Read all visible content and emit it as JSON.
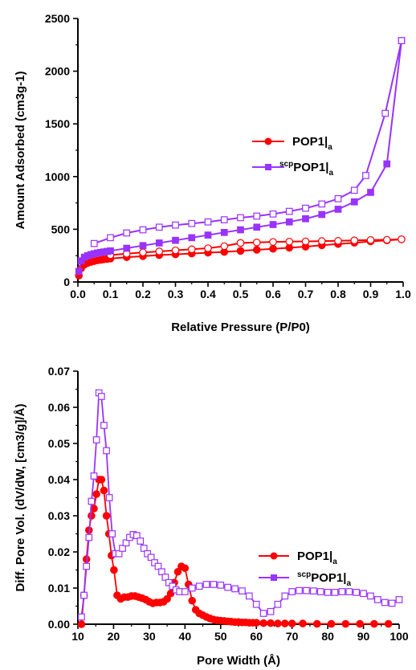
{
  "chart_data": [
    {
      "type": "line",
      "xlabel": "Relative Pressure (P/P0)",
      "ylabel": "Amount Adsorbed (cm3g-1)",
      "xlim": [
        0.0,
        1.0
      ],
      "ylim": [
        0,
        2500
      ],
      "xticks": [
        "0.0",
        "0.1",
        "0.2",
        "0.3",
        "0.4",
        "0.5",
        "0.6",
        "0.7",
        "0.8",
        "0.9",
        "1.0"
      ],
      "yticks": [
        "0",
        "500",
        "1000",
        "1500",
        "2000",
        "2500"
      ],
      "legend_position": "center-right",
      "legend": [
        {
          "sup": "",
          "main": "POP1",
          "sub": "a",
          "color": "#ff0000",
          "marker": "circle"
        },
        {
          "sup": "scp",
          "main": "POP1",
          "sub": "a",
          "color": "#9933ff",
          "marker": "square"
        }
      ],
      "series": [
        {
          "name": "POP1|a",
          "branch": "adsorption",
          "color": "#ff0000",
          "marker": "circle",
          "filled": true,
          "x": [
            0.003,
            0.01,
            0.02,
            0.03,
            0.04,
            0.05,
            0.06,
            0.07,
            0.08,
            0.09,
            0.1,
            0.15,
            0.2,
            0.25,
            0.3,
            0.35,
            0.4,
            0.45,
            0.5,
            0.55,
            0.6,
            0.65,
            0.7,
            0.75,
            0.8,
            0.85,
            0.9,
            0.95,
            0.995
          ],
          "y": [
            60,
            130,
            165,
            180,
            190,
            198,
            205,
            210,
            215,
            218,
            222,
            235,
            245,
            255,
            262,
            270,
            278,
            285,
            295,
            305,
            315,
            325,
            335,
            348,
            360,
            372,
            385,
            395,
            405
          ]
        },
        {
          "name": "POP1|a",
          "branch": "desorption",
          "color": "#ff0000",
          "marker": "circle",
          "filled": false,
          "x": [
            0.995,
            0.95,
            0.9,
            0.85,
            0.8,
            0.75,
            0.7,
            0.65,
            0.6,
            0.55,
            0.5,
            0.45,
            0.4,
            0.35,
            0.3,
            0.25,
            0.2,
            0.15,
            0.1
          ],
          "y": [
            405,
            400,
            398,
            395,
            390,
            388,
            385,
            383,
            380,
            375,
            370,
            340,
            320,
            310,
            300,
            290,
            280,
            268,
            255
          ]
        },
        {
          "name": "scpPOP1|a",
          "branch": "adsorption",
          "color": "#9933ff",
          "marker": "square",
          "filled": true,
          "x": [
            0.003,
            0.01,
            0.02,
            0.03,
            0.04,
            0.05,
            0.06,
            0.07,
            0.08,
            0.09,
            0.1,
            0.15,
            0.2,
            0.25,
            0.3,
            0.35,
            0.4,
            0.45,
            0.5,
            0.55,
            0.6,
            0.65,
            0.7,
            0.75,
            0.8,
            0.85,
            0.9,
            0.95,
            0.995
          ],
          "y": [
            100,
            200,
            235,
            250,
            260,
            268,
            275,
            280,
            285,
            290,
            295,
            320,
            345,
            370,
            395,
            420,
            445,
            470,
            495,
            520,
            545,
            570,
            600,
            640,
            690,
            760,
            850,
            1120,
            2290
          ]
        },
        {
          "name": "scpPOP1|a",
          "branch": "desorption",
          "color": "#9933ff",
          "marker": "square",
          "filled": false,
          "x": [
            0.995,
            0.945,
            0.885,
            0.85,
            0.8,
            0.75,
            0.7,
            0.65,
            0.6,
            0.55,
            0.5,
            0.45,
            0.4,
            0.35,
            0.3,
            0.25,
            0.2,
            0.15,
            0.1,
            0.05
          ],
          "y": [
            2290,
            1600,
            1010,
            870,
            790,
            740,
            700,
            670,
            645,
            625,
            610,
            590,
            570,
            555,
            540,
            520,
            495,
            465,
            420,
            365
          ]
        }
      ]
    },
    {
      "type": "line",
      "xlabel": "Pore Width (Å)",
      "ylabel": "Diff. Pore Vol. (dV/dW, [cm3/g]/Å)",
      "xlim": [
        10,
        100
      ],
      "ylim": [
        0.0,
        0.07
      ],
      "xticks": [
        "10",
        "20",
        "30",
        "40",
        "50",
        "60",
        "70",
        "80",
        "90",
        "100"
      ],
      "yticks": [
        "0.00",
        "0.01",
        "0.02",
        "0.03",
        "0.04",
        "0.05",
        "0.06",
        "0.07"
      ],
      "legend_position": "center-right",
      "legend": [
        {
          "sup": "",
          "main": "POP1",
          "sub": "a",
          "color": "#ff0000",
          "marker": "circle"
        },
        {
          "sup": "scp",
          "main": "POP1",
          "sub": "a",
          "color": "#9933ff",
          "marker": "square"
        }
      ],
      "series": [
        {
          "name": "POP1|a",
          "color": "#ff0000",
          "marker": "circle",
          "filled": true,
          "x": [
            11,
            11.7,
            12.4,
            13.1,
            13.8,
            14.5,
            15.2,
            15.9,
            16.6,
            17.3,
            18,
            18.7,
            19.4,
            20.1,
            21,
            22,
            23,
            24,
            25,
            26,
            27,
            28,
            29,
            30,
            31,
            32,
            33,
            34,
            35,
            36,
            37,
            38,
            39,
            40,
            41,
            42,
            43,
            44,
            45,
            46,
            47,
            48,
            49,
            50,
            51,
            52,
            53,
            54,
            55,
            56,
            57,
            58,
            59,
            60,
            62,
            64,
            66,
            68,
            70,
            73,
            77,
            81,
            85,
            89,
            93,
            97
          ],
          "y": [
            0.0,
            0.008,
            0.018,
            0.026,
            0.03,
            0.032,
            0.036,
            0.04,
            0.04,
            0.037,
            0.03,
            0.025,
            0.019,
            0.015,
            0.008,
            0.007,
            0.0075,
            0.0075,
            0.0078,
            0.0078,
            0.0075,
            0.0072,
            0.0068,
            0.0062,
            0.0058,
            0.006,
            0.006,
            0.0062,
            0.007,
            0.0085,
            0.0115,
            0.0145,
            0.016,
            0.0155,
            0.011,
            0.0065,
            0.004,
            0.003,
            0.0025,
            0.002,
            0.0016,
            0.0013,
            0.0011,
            0.001,
            0.0009,
            0.0008,
            0.0007,
            0.0006,
            0.0006,
            0.0005,
            0.0005,
            0.0004,
            0.0004,
            0.0004,
            0.0003,
            0.0003,
            0.0002,
            0.0002,
            0.0002,
            0.0002,
            0.0001,
            0.0001,
            0.0001,
            0.0001,
            0.0001,
            0.0001
          ]
        },
        {
          "name": "scpPOP1|a",
          "color": "#9933ff",
          "marker": "square",
          "filled": false,
          "x": [
            11,
            11.7,
            12.4,
            13.1,
            13.8,
            14.5,
            15.2,
            15.9,
            16.6,
            17.3,
            18,
            18.8,
            19.6,
            20.5,
            21.5,
            22.5,
            23.5,
            24.5,
            25.5,
            26.5,
            27.5,
            28.5,
            29.5,
            30.5,
            31.5,
            32.5,
            33.5,
            34.5,
            35.5,
            36.5,
            37.5,
            38.5,
            40,
            42,
            44,
            46,
            48,
            50,
            52,
            54,
            56,
            58,
            60,
            62,
            64,
            66,
            68,
            70,
            72,
            74,
            76,
            78,
            80,
            82,
            84,
            86,
            88,
            90,
            92,
            94,
            96,
            98,
            100
          ],
          "y": [
            0.002,
            0.008,
            0.016,
            0.024,
            0.034,
            0.041,
            0.051,
            0.064,
            0.063,
            0.055,
            0.048,
            0.035,
            0.025,
            0.0195,
            0.0195,
            0.021,
            0.0225,
            0.024,
            0.0248,
            0.0245,
            0.023,
            0.021,
            0.0195,
            0.0185,
            0.017,
            0.016,
            0.0145,
            0.013,
            0.0115,
            0.0105,
            0.0095,
            0.009,
            0.009,
            0.01,
            0.0105,
            0.011,
            0.011,
            0.0108,
            0.0102,
            0.0098,
            0.0092,
            0.0078,
            0.0055,
            0.003,
            0.0035,
            0.0055,
            0.0078,
            0.009,
            0.0093,
            0.0093,
            0.0092,
            0.009,
            0.0088,
            0.0088,
            0.009,
            0.009,
            0.0088,
            0.0085,
            0.0078,
            0.0068,
            0.006,
            0.0058,
            0.0068
          ]
        }
      ]
    }
  ]
}
